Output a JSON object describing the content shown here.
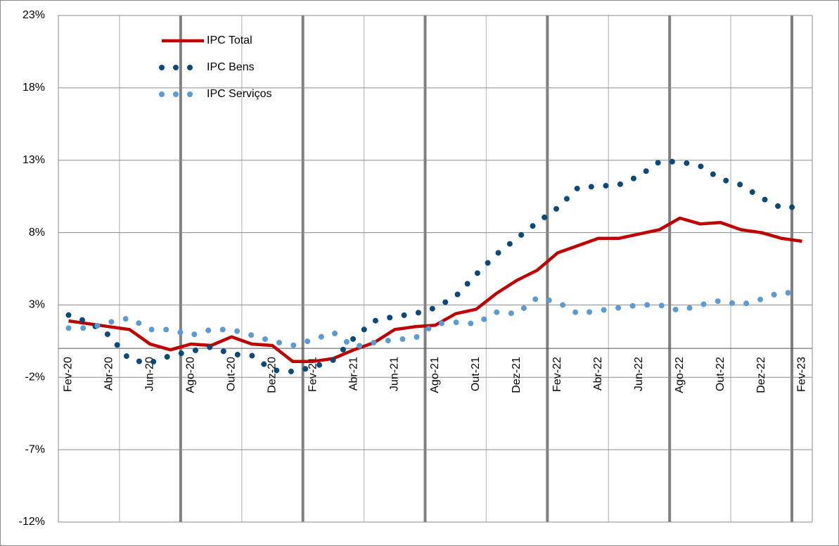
{
  "chart_data": {
    "type": "line",
    "categories": [
      "Fev-20",
      null,
      "Abr-20",
      null,
      "Jun-20",
      null,
      "Ago-20",
      null,
      "Out-20",
      null,
      "Dez-20",
      null,
      "Fev-21",
      null,
      "Abr-21",
      null,
      "Jun-21",
      null,
      "Ago-21",
      null,
      "Out-21",
      null,
      "Dez-21",
      null,
      "Fev-22",
      null,
      "Abr-22",
      null,
      "Jun-22",
      null,
      "Ago-22",
      null,
      "Out-22",
      null,
      "Dez-22",
      null,
      "Fev-23"
    ],
    "series": [
      {
        "name": "IPC Total",
        "color": "#c00000",
        "style": "solid",
        "values": [
          1.9,
          1.7,
          1.5,
          1.3,
          0.3,
          -0.1,
          0.3,
          0.2,
          0.8,
          0.3,
          0.2,
          -0.9,
          -0.9,
          -0.7,
          -0.1,
          0.4,
          1.3,
          1.5,
          1.6,
          2.4,
          2.7,
          3.8,
          4.7,
          5.4,
          6.6,
          7.1,
          7.6,
          7.6,
          7.9,
          8.2,
          9.0,
          8.6,
          8.7,
          8.2,
          8.0,
          7.6,
          7.4
        ]
      },
      {
        "name": "IPC Bens",
        "color": "#0b4a78",
        "style": "dotted",
        "values": [
          2.3,
          1.8,
          0.9,
          -0.8,
          -1.0,
          -0.5,
          -0.2,
          0.1,
          -0.4,
          -0.5,
          -1.5,
          -1.6,
          -1.3,
          -0.8,
          0.7,
          1.9,
          2.2,
          2.4,
          2.8,
          3.6,
          5.1,
          6.5,
          7.6,
          8.7,
          9.7,
          11.1,
          11.2,
          11.3,
          11.9,
          12.9,
          12.9,
          12.6,
          11.7,
          11.3,
          10.4,
          9.7,
          9.8
        ]
      },
      {
        "name": "IPC Serviços",
        "color": "#5b9bd5",
        "style": "dotted",
        "values": [
          1.4,
          1.4,
          1.8,
          2.1,
          1.3,
          1.3,
          0.9,
          1.3,
          1.3,
          0.9,
          0.5,
          0.2,
          0.6,
          1.1,
          0.1,
          0.4,
          0.6,
          0.7,
          1.7,
          1.8,
          1.7,
          2.5,
          2.4,
          3.5,
          3.2,
          2.4,
          2.6,
          2.8,
          3.0,
          3.0,
          2.6,
          3.0,
          3.3,
          3.0,
          3.4,
          3.9,
          3.7
        ]
      }
    ],
    "ylim": [
      -12,
      23
    ],
    "yticks": [
      {
        "value": -12,
        "label": "-12%"
      },
      {
        "value": -7,
        "label": "-7%"
      },
      {
        "value": -2,
        "label": "-2%"
      },
      {
        "value": 3,
        "label": "3%"
      },
      {
        "value": 8,
        "label": "8%"
      },
      {
        "value": 13,
        "label": "13%"
      },
      {
        "value": 18,
        "label": "18%"
      },
      {
        "value": 23,
        "label": "23%"
      }
    ],
    "grid": true,
    "legend": "top-left"
  }
}
